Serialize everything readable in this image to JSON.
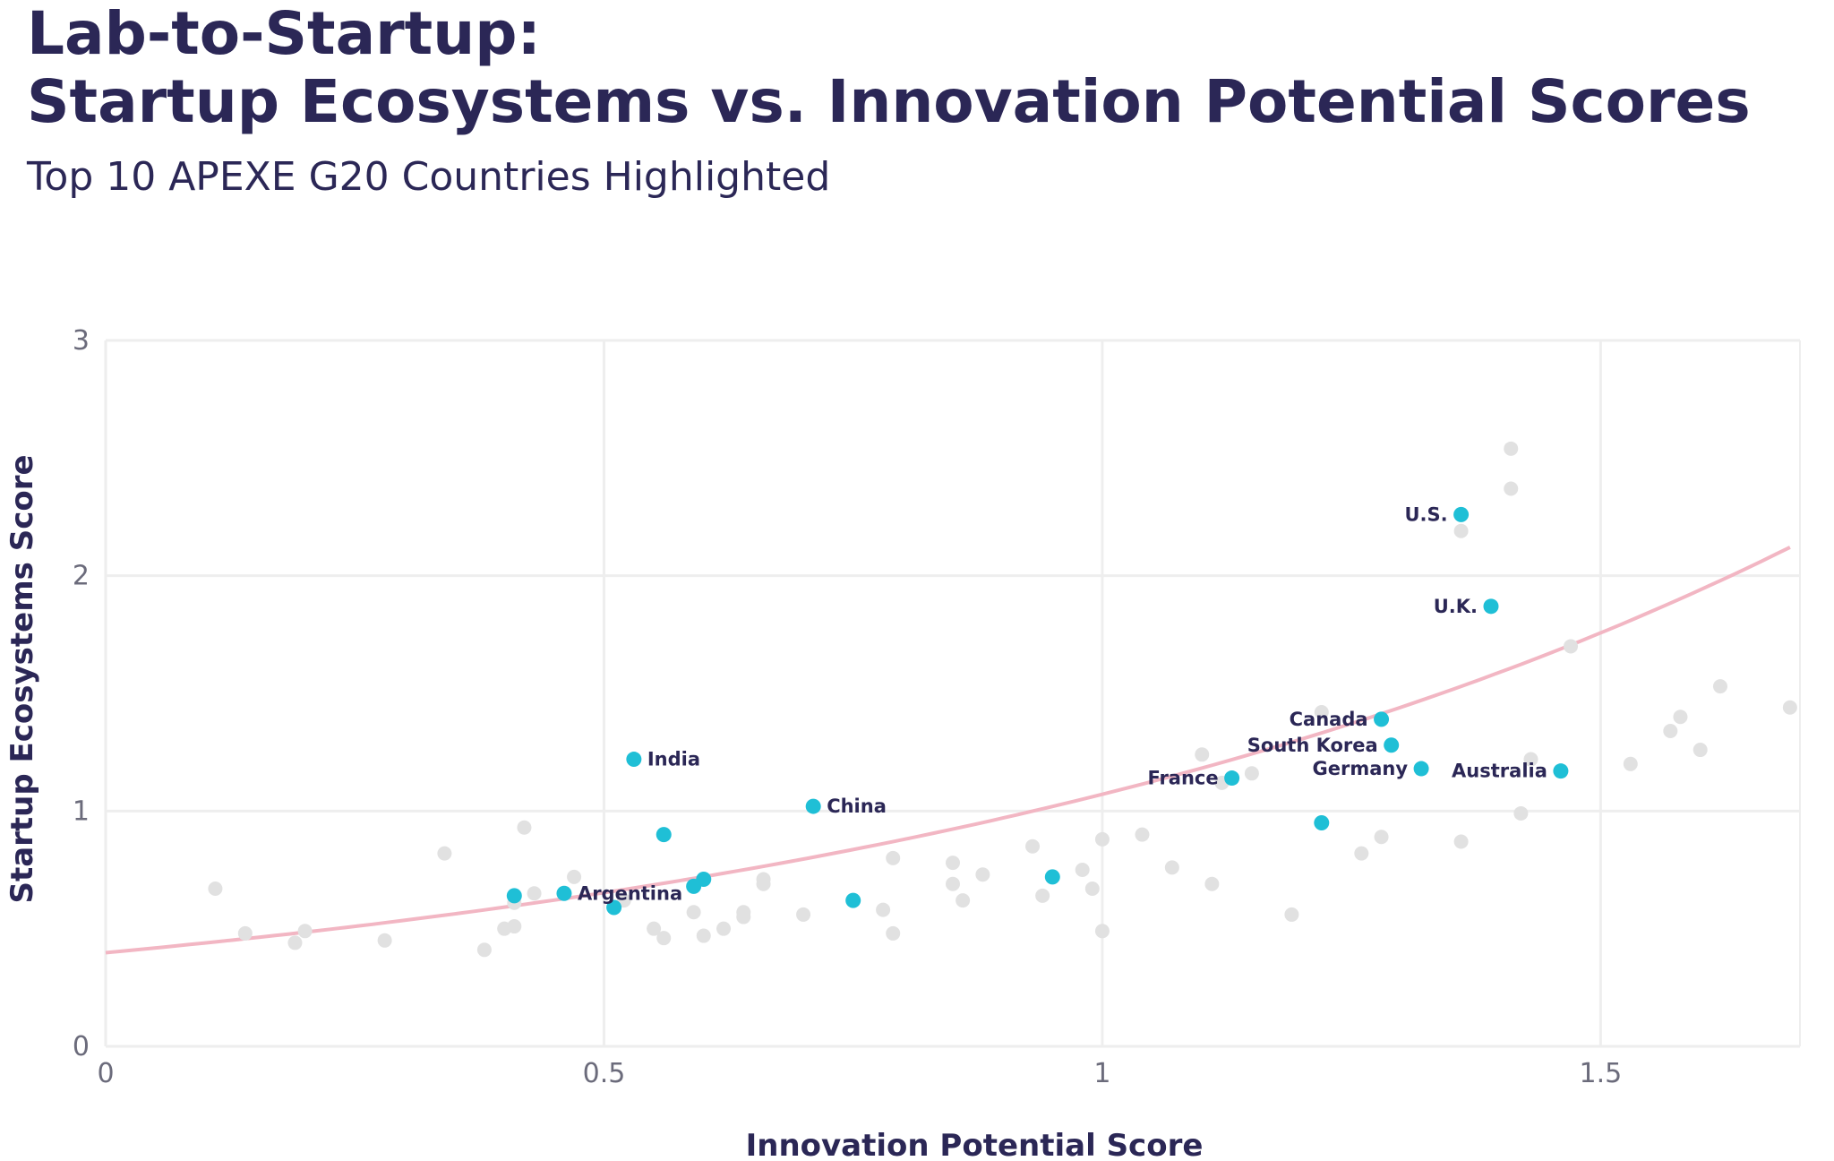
{
  "header": {
    "title_line1": "Lab-to-Startup:",
    "title_line2": "Startup Ecosystems vs. Innovation Potential Scores",
    "subtitle": "Top 10 APEXE G20 Countries Highlighted"
  },
  "colors": {
    "highlight": "#1fbfd6",
    "background_point": "#e1e1e1",
    "trend_line": "#f2b6c3",
    "grid": "#eeeeee",
    "text": "#2b2756"
  },
  "chart_data": {
    "type": "scatter",
    "title": "Lab-to-Startup: Startup Ecosystems vs. Innovation Potential Scores",
    "subtitle": "Top 10 APEXE G20 Countries Highlighted",
    "xlabel": "Innovation Potential Score",
    "ylabel": "Startup Ecosystems Score",
    "xlim": [
      0,
      1.7
    ],
    "ylim": [
      0,
      3
    ],
    "xticks": [
      0,
      0.5,
      1,
      1.5
    ],
    "xtick_labels": [
      "0",
      "0.5",
      "1",
      "1.5"
    ],
    "yticks": [
      0,
      1,
      2,
      3
    ],
    "ytick_labels": [
      "0",
      "1",
      "2",
      "3"
    ],
    "grid": true,
    "trend_line": {
      "type": "exponential",
      "a": 0.398,
      "b": 0.99
    },
    "highlighted": [
      {
        "label": "U.S.",
        "x": 1.36,
        "y": 2.26,
        "label_side": "left"
      },
      {
        "label": "U.K.",
        "x": 1.39,
        "y": 1.87,
        "label_side": "left"
      },
      {
        "label": "Canada",
        "x": 1.28,
        "y": 1.39,
        "label_side": "left"
      },
      {
        "label": "South Korea",
        "x": 1.29,
        "y": 1.28,
        "label_side": "left"
      },
      {
        "label": "Germany",
        "x": 1.32,
        "y": 1.18,
        "label_side": "left"
      },
      {
        "label": "Australia",
        "x": 1.46,
        "y": 1.17,
        "label_side": "left"
      },
      {
        "label": "France",
        "x": 1.13,
        "y": 1.14,
        "label_side": "left"
      },
      {
        "label": "India",
        "x": 0.53,
        "y": 1.22,
        "label_side": "right"
      },
      {
        "label": "China",
        "x": 0.71,
        "y": 1.02,
        "label_side": "right"
      },
      {
        "label": "Argentina",
        "x": 0.46,
        "y": 0.65,
        "label_side": "right"
      },
      {
        "label": "",
        "x": 1.22,
        "y": 0.95
      },
      {
        "label": "",
        "x": 0.56,
        "y": 0.9
      },
      {
        "label": "",
        "x": 0.6,
        "y": 0.71
      },
      {
        "label": "",
        "x": 0.59,
        "y": 0.68
      },
      {
        "label": "",
        "x": 0.41,
        "y": 0.64
      },
      {
        "label": "",
        "x": 0.51,
        "y": 0.59
      },
      {
        "label": "",
        "x": 0.75,
        "y": 0.62
      },
      {
        "label": "",
        "x": 0.95,
        "y": 0.72
      }
    ],
    "others": [
      {
        "x": 0.11,
        "y": 0.67
      },
      {
        "x": 0.14,
        "y": 0.48
      },
      {
        "x": 0.19,
        "y": 0.44
      },
      {
        "x": 0.2,
        "y": 0.49
      },
      {
        "x": 0.28,
        "y": 0.45
      },
      {
        "x": 0.34,
        "y": 0.82
      },
      {
        "x": 0.38,
        "y": 0.41
      },
      {
        "x": 0.4,
        "y": 0.5
      },
      {
        "x": 0.41,
        "y": 0.51
      },
      {
        "x": 0.41,
        "y": 0.61
      },
      {
        "x": 0.42,
        "y": 0.93
      },
      {
        "x": 0.43,
        "y": 0.65
      },
      {
        "x": 0.47,
        "y": 0.72
      },
      {
        "x": 0.52,
        "y": 0.62
      },
      {
        "x": 0.55,
        "y": 0.5
      },
      {
        "x": 0.56,
        "y": 0.46
      },
      {
        "x": 0.59,
        "y": 0.57
      },
      {
        "x": 0.6,
        "y": 0.47
      },
      {
        "x": 0.62,
        "y": 0.5
      },
      {
        "x": 0.64,
        "y": 0.57
      },
      {
        "x": 0.64,
        "y": 0.55
      },
      {
        "x": 0.66,
        "y": 0.71
      },
      {
        "x": 0.66,
        "y": 0.69
      },
      {
        "x": 0.7,
        "y": 0.56
      },
      {
        "x": 0.78,
        "y": 0.58
      },
      {
        "x": 0.79,
        "y": 0.48
      },
      {
        "x": 0.79,
        "y": 0.8
      },
      {
        "x": 0.85,
        "y": 0.78
      },
      {
        "x": 0.85,
        "y": 0.69
      },
      {
        "x": 0.86,
        "y": 0.62
      },
      {
        "x": 0.88,
        "y": 0.73
      },
      {
        "x": 0.93,
        "y": 0.85
      },
      {
        "x": 0.94,
        "y": 0.64
      },
      {
        "x": 0.98,
        "y": 0.75
      },
      {
        "x": 0.99,
        "y": 0.67
      },
      {
        "x": 1.0,
        "y": 0.88
      },
      {
        "x": 1.0,
        "y": 0.49
      },
      {
        "x": 1.04,
        "y": 0.9
      },
      {
        "x": 1.07,
        "y": 0.76
      },
      {
        "x": 1.1,
        "y": 1.24
      },
      {
        "x": 1.11,
        "y": 0.69
      },
      {
        "x": 1.12,
        "y": 1.12
      },
      {
        "x": 1.15,
        "y": 1.16
      },
      {
        "x": 1.19,
        "y": 0.56
      },
      {
        "x": 1.22,
        "y": 1.42
      },
      {
        "x": 1.26,
        "y": 0.82
      },
      {
        "x": 1.28,
        "y": 0.89
      },
      {
        "x": 1.36,
        "y": 2.19
      },
      {
        "x": 1.36,
        "y": 0.87
      },
      {
        "x": 1.41,
        "y": 2.54
      },
      {
        "x": 1.41,
        "y": 2.37
      },
      {
        "x": 1.42,
        "y": 0.99
      },
      {
        "x": 1.43,
        "y": 1.22
      },
      {
        "x": 1.47,
        "y": 1.7
      },
      {
        "x": 1.53,
        "y": 1.2
      },
      {
        "x": 1.57,
        "y": 1.34
      },
      {
        "x": 1.58,
        "y": 1.4
      },
      {
        "x": 1.6,
        "y": 1.26
      },
      {
        "x": 1.62,
        "y": 1.53
      },
      {
        "x": 1.69,
        "y": 1.44
      }
    ]
  }
}
